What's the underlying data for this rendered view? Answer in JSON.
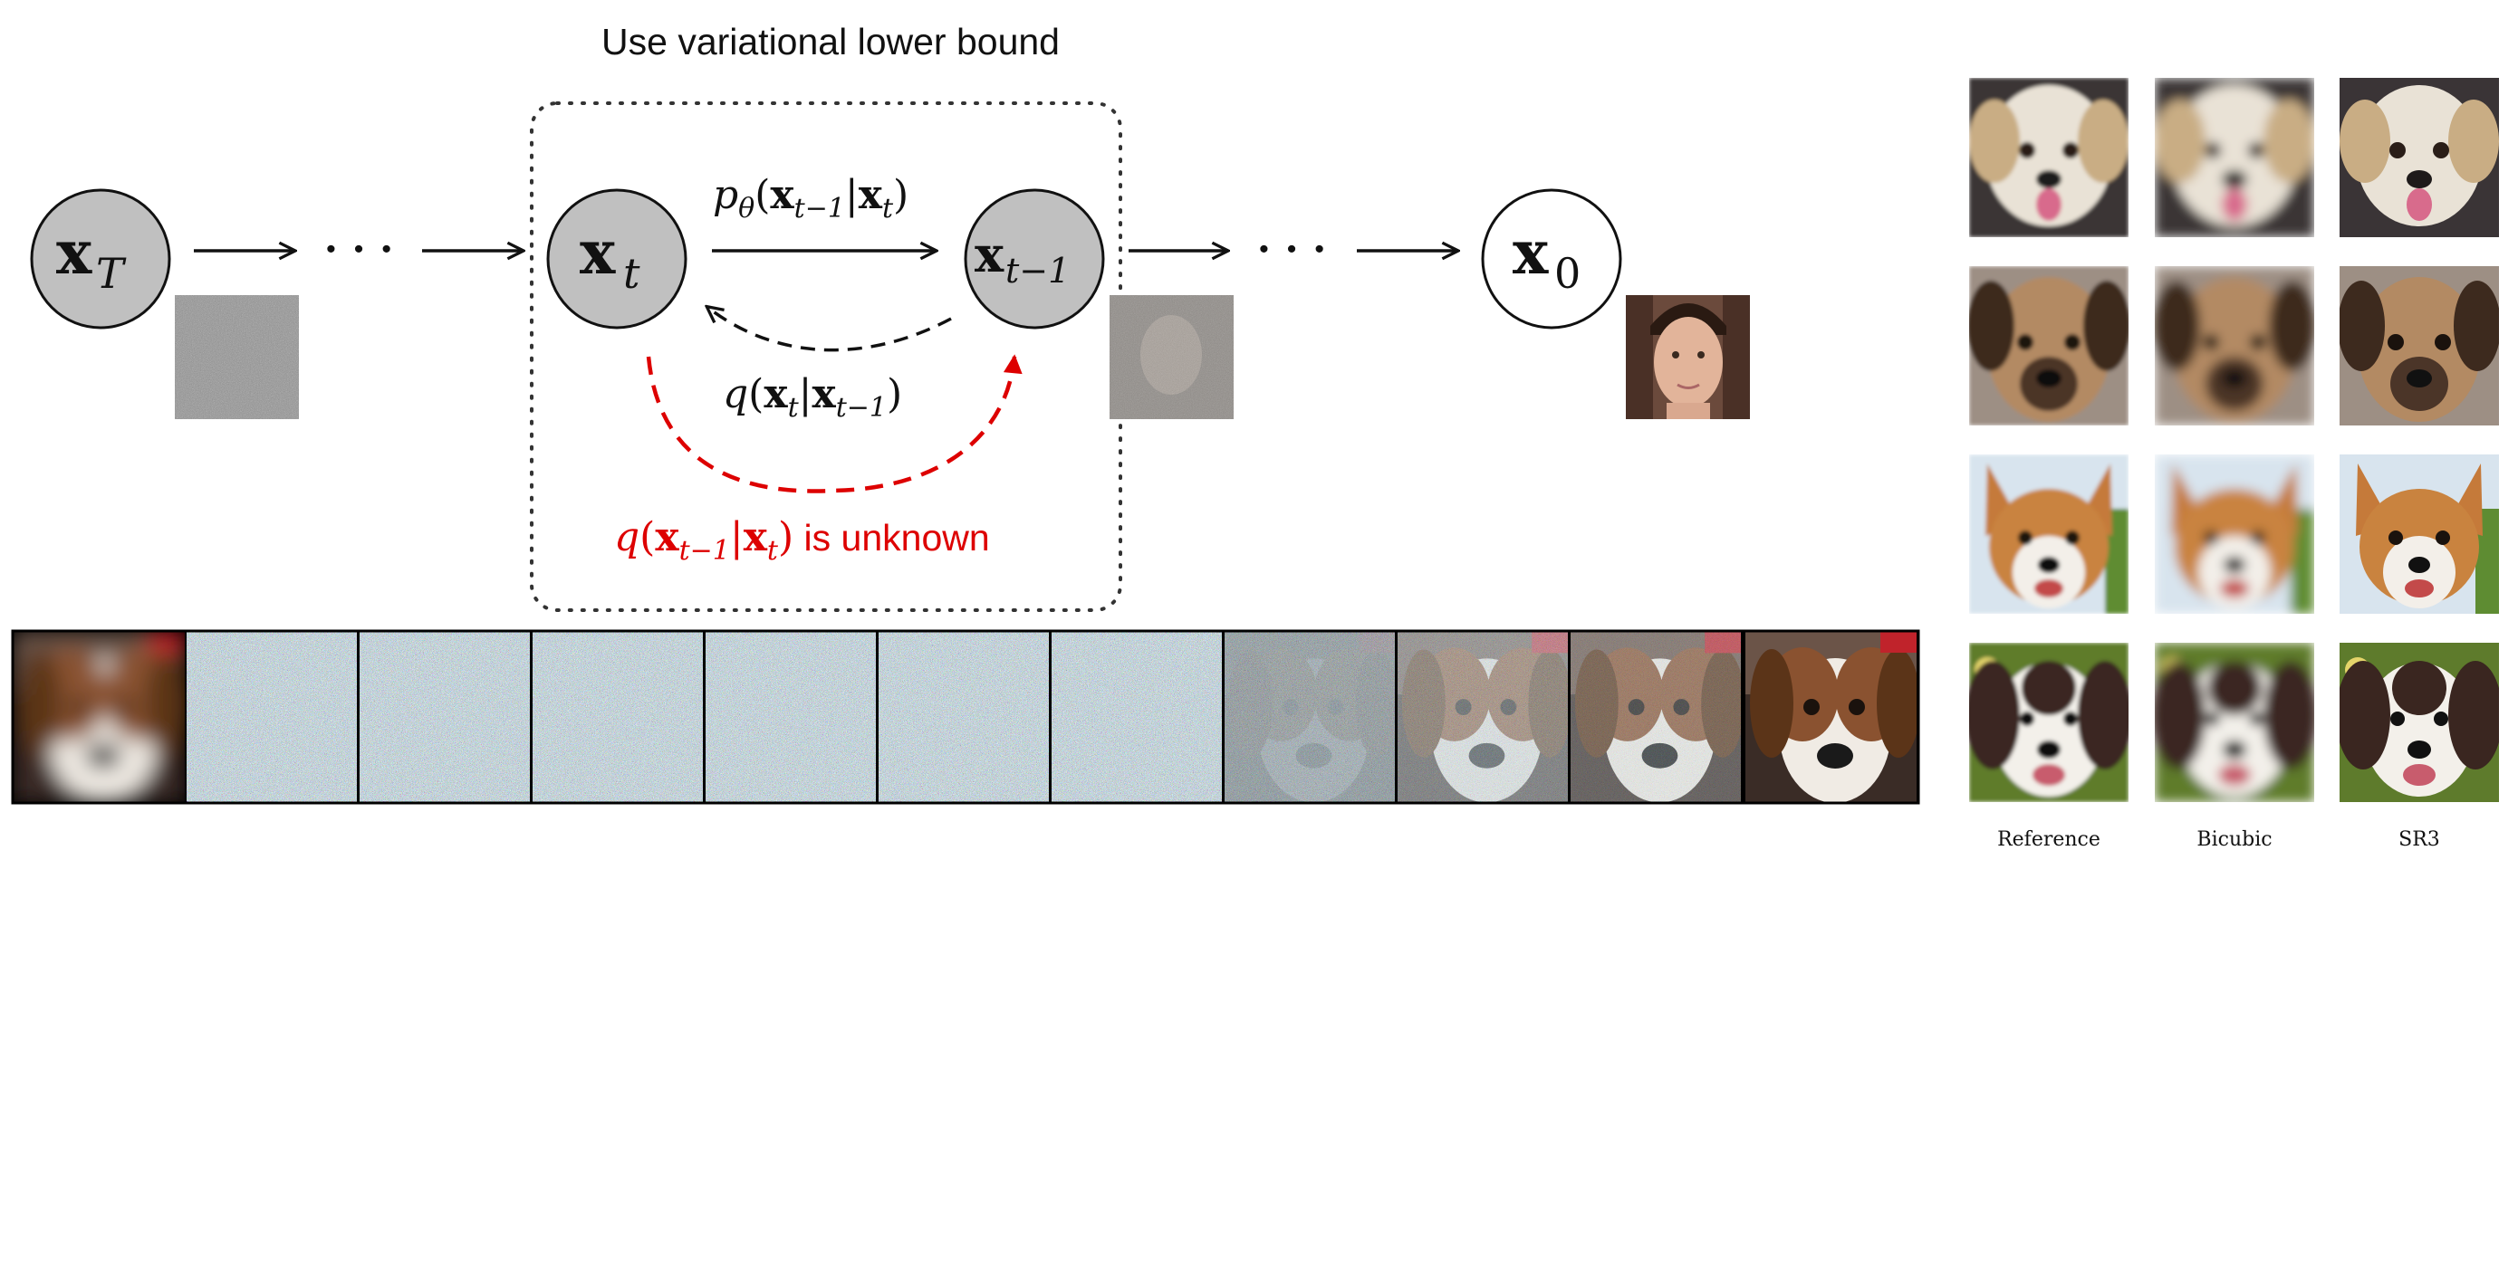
{
  "diagram": {
    "box_title": "Use variational lower bound",
    "nodes": {
      "xT": {
        "base": "x",
        "sub": "T"
      },
      "xt": {
        "base": "x",
        "sub": "t"
      },
      "xt1": {
        "base": "x",
        "sub": "t−1"
      },
      "x0": {
        "base": "x",
        "sub": "0"
      }
    },
    "ellipsis": "· · ·",
    "reverse_label": {
      "p": "p",
      "theta": "θ",
      "open": "(",
      "x1": "x",
      "x1_sub": "t−1",
      "bar": "|",
      "x2": "x",
      "x2_sub": "t",
      "close": ")"
    },
    "forward_label": {
      "q": "q",
      "open": "(",
      "x1": "x",
      "x1_sub": "t",
      "bar": "|",
      "x2": "x",
      "x2_sub": "t−1",
      "close": ")"
    },
    "unknown_label": {
      "q": "q",
      "open": "(",
      "x1": "x",
      "x1_sub": "t−1",
      "bar": "|",
      "x2": "x",
      "x2_sub": "t",
      "close": ")",
      "suffix": " is unknown"
    },
    "colors": {
      "node_fill": "#c0c0c0",
      "unknown": "#dd0000",
      "dashed": "#111111"
    }
  },
  "sr_grid": {
    "columns": [
      "Reference",
      "Bicubic",
      "SR3"
    ],
    "rows": 4
  },
  "strip": {
    "frames": 11
  }
}
